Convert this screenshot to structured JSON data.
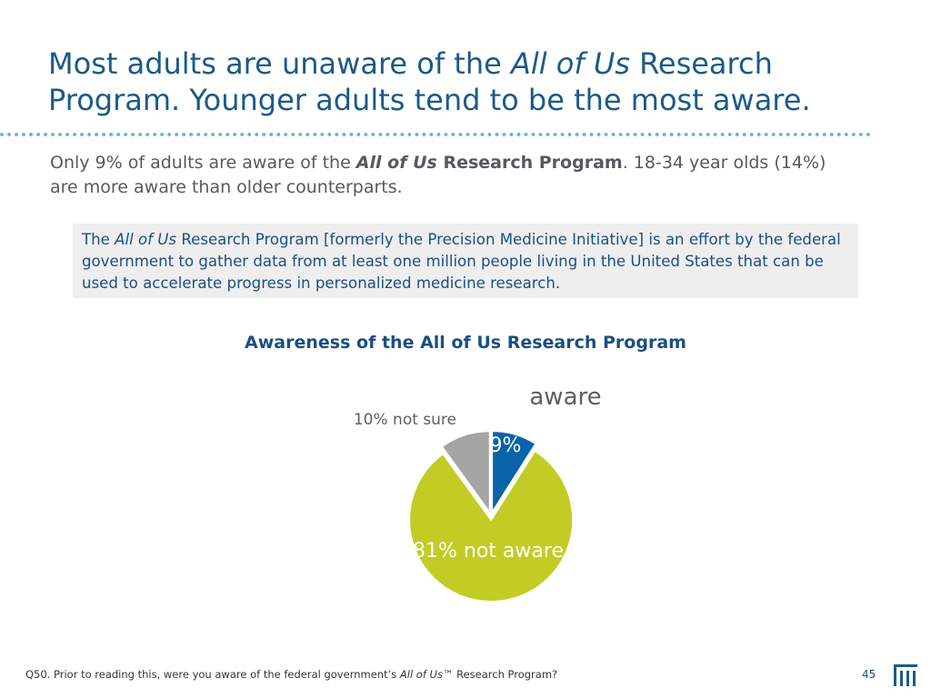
{
  "slide": {
    "title_pre": "Most adults are unaware of the ",
    "title_em": "All of Us",
    "title_post": " Research Program. Younger adults tend to be the most aware.",
    "subtitle_pre": "Only 9% of adults are aware of the ",
    "subtitle_em": "All of Us",
    "subtitle_bold": " Research Program",
    "subtitle_post": ". 18-34 year olds (14%) are more aware than older counterparts.",
    "callout_pre": "The ",
    "callout_em": "All of Us",
    "callout_post": " Research Program [formerly the Precision Medicine Initiative] is an effort by the federal government to gather data from at least one million people living in the United States that can be used to accelerate progress in personalized medicine research.",
    "footnote_pre": "Q50. Prior to reading this, were you aware of the federal government’s ",
    "footnote_em": "All of Us",
    "footnote_post": "™ Research Program?",
    "page_number": "45"
  },
  "chart_data": {
    "type": "pie",
    "title": "Awareness of the All of Us Research Program",
    "slices": [
      {
        "label": "aware",
        "value": 9,
        "value_label": "9%",
        "color": "#0a63a8"
      },
      {
        "label": "not aware",
        "value": 81,
        "value_label": "81% not aware",
        "color": "#c2cc25"
      },
      {
        "label": "not sure",
        "value": 10,
        "value_label": "10% not sure",
        "color": "#a5a5a5"
      }
    ]
  }
}
